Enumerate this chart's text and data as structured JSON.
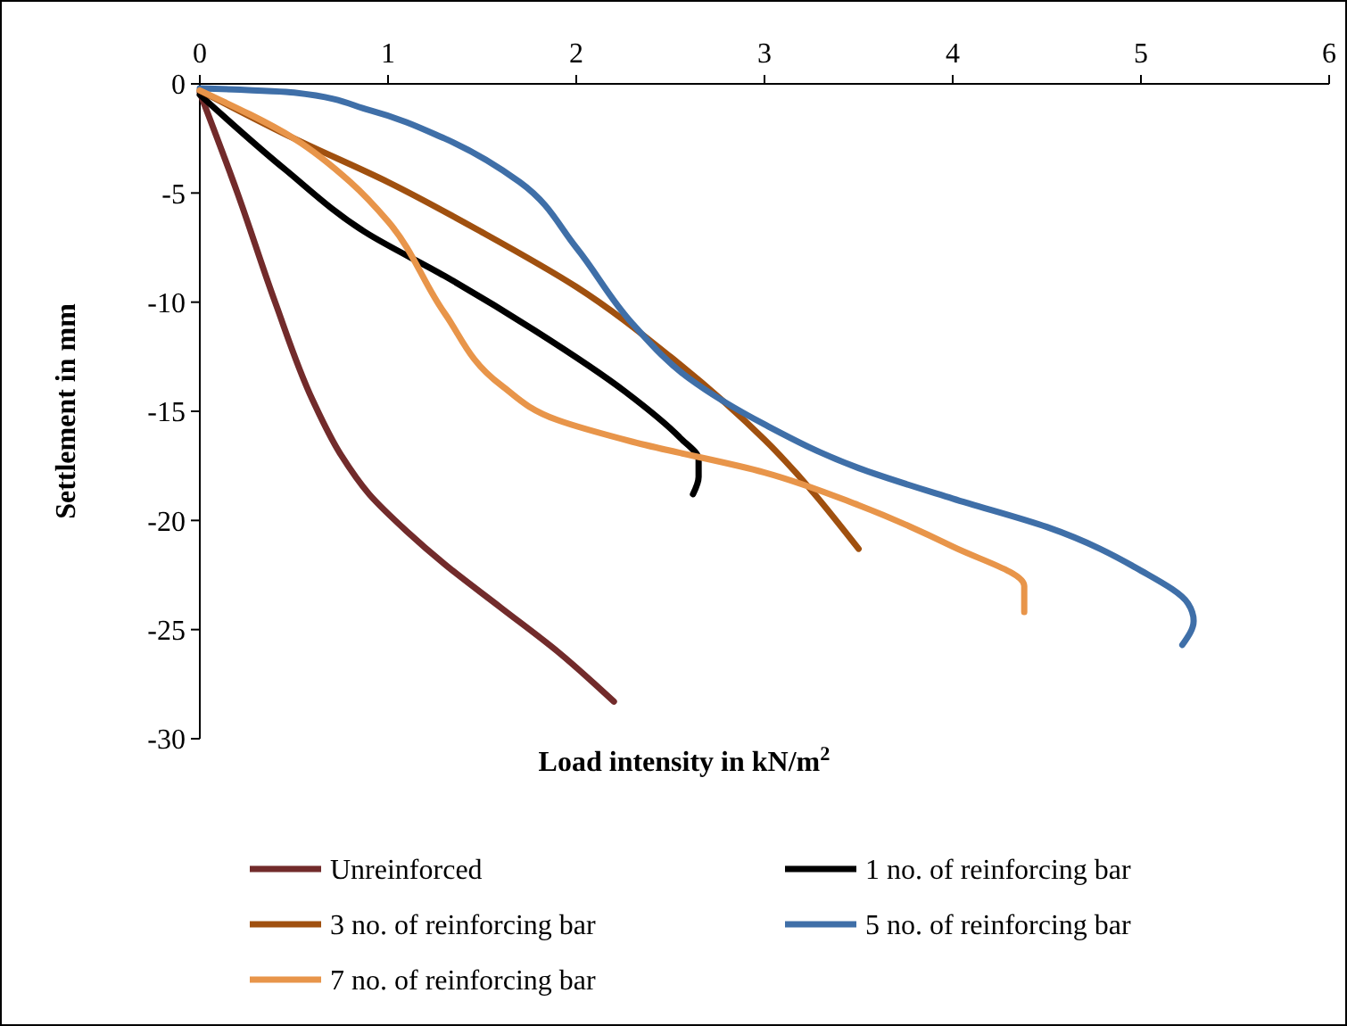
{
  "chart_data": {
    "type": "line",
    "xlabel": "Load intensity in kN/m$^{2}$",
    "ylabel": "Settlement in mm",
    "xlim": [
      0,
      6
    ],
    "xticks": [
      0,
      1,
      2,
      3,
      4,
      5,
      6
    ],
    "ylim": [
      -30,
      0
    ],
    "yticks": [
      -30,
      -25,
      -20,
      -15,
      -10,
      -5,
      0
    ],
    "grid": false,
    "legend": "bottom",
    "line_style": "solid",
    "series": [
      {
        "name": "Unreinforced",
        "color": "#722b2b",
        "x": [
          0,
          0.2,
          0.4,
          0.6,
          0.75,
          0.9,
          1.1,
          1.3,
          1.6,
          1.9,
          2.2
        ],
        "values": [
          -0.4,
          -5,
          -10,
          -14.5,
          -17,
          -18.8,
          -20.5,
          -22,
          -24,
          -26,
          -28.3
        ]
      },
      {
        "name": "1 no. of reinforcing bar",
        "color": "#000000",
        "x": [
          0,
          0.45,
          0.88,
          1.3,
          1.78,
          2.26,
          2.55,
          2.65,
          2.65,
          2.62
        ],
        "values": [
          -0.5,
          -3.9,
          -6.8,
          -8.8,
          -11.3,
          -14.1,
          -16.2,
          -17.2,
          -18,
          -18.8
        ]
      },
      {
        "name": "3 no. of reinforcing bar",
        "color": "#a0500f",
        "x": [
          0,
          0.5,
          1,
          1.5,
          2,
          2.5,
          3,
          3.5
        ],
        "values": [
          -0.3,
          -2.5,
          -4.5,
          -6.8,
          -9.3,
          -12.5,
          -16.3,
          -21.3
        ]
      },
      {
        "name": "5 no. of reinforcing bar",
        "color": "#3f6fa8",
        "x": [
          0,
          0.5,
          0.9,
          1.3,
          1.7,
          2,
          2.3,
          2.6,
          3,
          3.5,
          4,
          4.5,
          5,
          5.25,
          5.28,
          5.22
        ],
        "values": [
          -0.2,
          -0.4,
          -1.2,
          -2.5,
          -4.5,
          -7.5,
          -11,
          -13.5,
          -15.6,
          -17.6,
          -19,
          -20.3,
          -22.3,
          -23.8,
          -24.6,
          -25.7
        ]
      },
      {
        "name": "7 no. of reinforcing bar",
        "color": "#e8954a",
        "x": [
          0,
          0.5,
          0.8,
          1,
          1.3,
          1.6,
          1.9,
          2.3,
          3,
          3.5,
          4,
          4.38,
          4.38
        ],
        "values": [
          -0.3,
          -2.5,
          -4.5,
          -6.3,
          -10.5,
          -13.8,
          -15.4,
          -16.4,
          -17.8,
          -19.3,
          -21.2,
          -23,
          -24.2
        ]
      }
    ]
  }
}
